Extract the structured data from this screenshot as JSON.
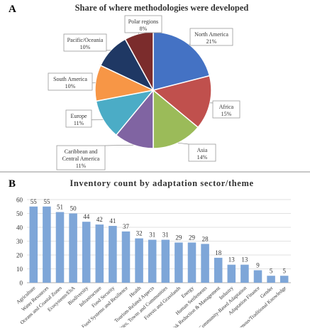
{
  "chart_data": [
    {
      "panel_label": "A",
      "type": "pie",
      "title": "Share of where methodologies were developed",
      "slices": [
        {
          "name": "North America",
          "value_label": "21%",
          "value": 21,
          "color": "#4472C4"
        },
        {
          "name": "Africa",
          "value_label": "15%",
          "value": 15,
          "color": "#C0504D"
        },
        {
          "name": "Asia",
          "value_label": "14%",
          "value": 14,
          "color": "#9BBB59"
        },
        {
          "name": "Caribbean and Central America",
          "value_label": "11%",
          "value": 11,
          "color": "#8064A2"
        },
        {
          "name": "Europe",
          "value_label": "11%",
          "value": 11,
          "color": "#4BACC6"
        },
        {
          "name": "South America",
          "value_label": "10%",
          "value": 10,
          "color": "#F79646"
        },
        {
          "name": "Pacific/Oceania",
          "value_label": "10%",
          "value": 10,
          "color": "#1F3864"
        },
        {
          "name": "Polar regions",
          "value_label": "8%",
          "value": 8,
          "color": "#7B2C2C"
        }
      ]
    },
    {
      "panel_label": "B",
      "type": "bar",
      "title": "Inventory count by adaptation sector/theme",
      "categories": [
        "Agriculture",
        "Water Resources",
        "Oceans and Coastal Zones",
        "Ecosystems/EbA",
        "Biodiversity",
        "Infrastructure",
        "Food Security",
        "Food Systems and Resilience",
        "Health",
        "Tourism-Related Aspects",
        "Cities, Towns and Communities",
        "Forests and Grasslands",
        "Energy",
        "Human Settlements",
        "Disaster Risk Reduction & Management",
        "Industry",
        "Community-Based Adaptation",
        "Adaptation Finance",
        "Gender",
        "Indigenous/Traditional Knowledge"
      ],
      "values": [
        55,
        55,
        51,
        50,
        44,
        42,
        41,
        37,
        32,
        31,
        31,
        29,
        29,
        28,
        18,
        13,
        13,
        9,
        5,
        5
      ],
      "yticks": [
        0,
        10,
        20,
        30,
        40,
        50,
        60
      ],
      "ylim": [
        0,
        60
      ],
      "bar_color": "#7EA6D8",
      "grid": true
    }
  ]
}
